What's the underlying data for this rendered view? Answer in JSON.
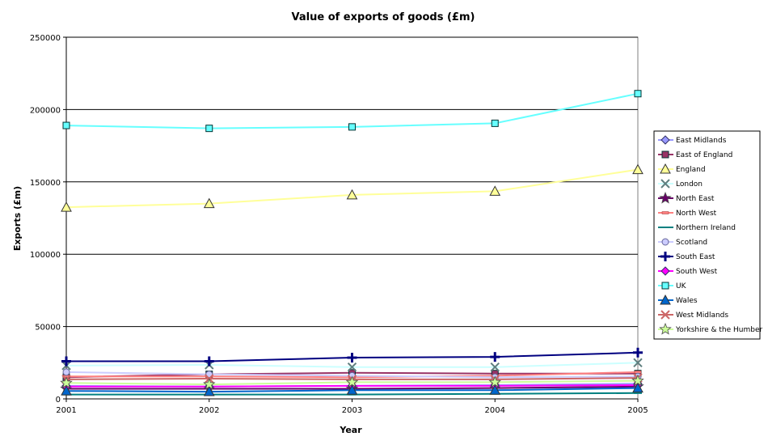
{
  "chart_data": {
    "type": "line",
    "title": "Value of exports of goods (£m)",
    "xlabel": "Year",
    "ylabel": "Exports (£m)",
    "x": [
      2001,
      2002,
      2003,
      2004,
      2005
    ],
    "x_tick_labels": [
      "2001",
      "2002",
      "2003",
      "2004",
      "2005"
    ],
    "ylim": [
      0,
      250000
    ],
    "y_ticks": [
      0,
      50000,
      100000,
      150000,
      200000,
      250000
    ],
    "y_tick_labels": [
      "0",
      "50000",
      "100000",
      "150000",
      "200000",
      "250000"
    ],
    "grid": "horizontal",
    "legend_position": "right",
    "series": [
      {
        "name": "East Midlands",
        "values": [
          9000,
          8500,
          9000,
          9500,
          10500
        ],
        "color": "#9999ff",
        "marker": "diamond"
      },
      {
        "name": "East of England",
        "values": [
          15000,
          17000,
          18000,
          17500,
          17500
        ],
        "color": "#993366",
        "marker": "square"
      },
      {
        "name": "England",
        "values": [
          132500,
          135000,
          141000,
          143500,
          158500
        ],
        "color": "#ffff99",
        "marker": "triangle"
      },
      {
        "name": "London",
        "values": [
          23000,
          23500,
          22000,
          22000,
          25000
        ],
        "color": "#ccffff",
        "marker": "x"
      },
      {
        "name": "North East",
        "values": [
          7000,
          7000,
          7000,
          7500,
          8500
        ],
        "color": "#660066",
        "marker": "star"
      },
      {
        "name": "North West",
        "values": [
          15500,
          15500,
          15000,
          16000,
          18500
        ],
        "color": "#ff8080",
        "marker": "dash"
      },
      {
        "name": "Northern Ireland",
        "values": [
          3000,
          3000,
          3000,
          3500,
          4000
        ],
        "color": "#008080",
        "marker": "line"
      },
      {
        "name": "Scotland",
        "values": [
          18500,
          17000,
          16000,
          15000,
          15500
        ],
        "color": "#ccccff",
        "marker": "circle"
      },
      {
        "name": "South East",
        "values": [
          26000,
          26000,
          28500,
          29000,
          32000
        ],
        "color": "#000080",
        "marker": "plus"
      },
      {
        "name": "South West",
        "values": [
          8500,
          8500,
          9000,
          9000,
          9500
        ],
        "color": "#ff00ff",
        "marker": "diamond"
      },
      {
        "name": "UK",
        "values": [
          189000,
          187000,
          188000,
          190500,
          211000
        ],
        "color": "#66ffff",
        "marker": "square"
      },
      {
        "name": "Wales",
        "values": [
          5500,
          5000,
          6000,
          6000,
          7500
        ],
        "color": "#0066cc",
        "marker": "triangle"
      },
      {
        "name": "West Midlands",
        "values": [
          13500,
          14000,
          13500,
          13500,
          14500
        ],
        "color": "#cc6666",
        "marker": "x"
      },
      {
        "name": "Yorkshire & the Humber",
        "values": [
          11000,
          10000,
          11500,
          11500,
          12500
        ],
        "color": "#ccff99",
        "marker": "star"
      }
    ]
  }
}
